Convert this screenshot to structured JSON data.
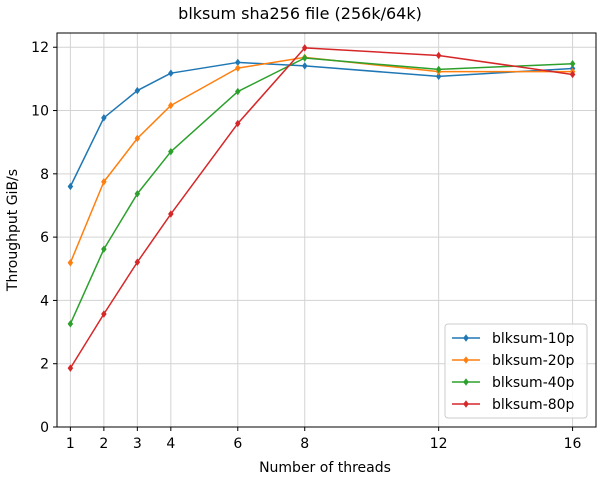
{
  "chart_data": {
    "type": "line",
    "title": "blksum sha256 file (256k/64k)",
    "xlabel": "Number of threads",
    "ylabel": "Throughput GiB/s",
    "x": [
      1,
      2,
      3,
      4,
      6,
      8,
      12,
      16
    ],
    "xlim": [
      0.6,
      16.7
    ],
    "ylim": [
      0,
      12.45
    ],
    "xticks": [
      1,
      2,
      3,
      4,
      6,
      8,
      12,
      16
    ],
    "yticks": [
      0,
      2,
      4,
      6,
      8,
      10,
      12
    ],
    "grid": true,
    "legend_position": "lower-right",
    "marker": "diamond",
    "series": [
      {
        "name": "blksum-10p",
        "color": "#1f77b4",
        "values": [
          7.6,
          9.77,
          10.63,
          11.18,
          11.52,
          11.41,
          11.08,
          11.33
        ]
      },
      {
        "name": "blksum-20p",
        "color": "#ff7f0e",
        "values": [
          5.19,
          7.75,
          9.12,
          10.16,
          11.34,
          11.68,
          11.23,
          11.23
        ]
      },
      {
        "name": "blksum-40p",
        "color": "#2ca02c",
        "values": [
          3.26,
          5.62,
          7.37,
          8.7,
          10.6,
          11.66,
          11.3,
          11.48
        ]
      },
      {
        "name": "blksum-80p",
        "color": "#d62728",
        "values": [
          1.86,
          3.57,
          5.21,
          6.73,
          9.59,
          11.98,
          11.74,
          11.14
        ]
      }
    ]
  }
}
